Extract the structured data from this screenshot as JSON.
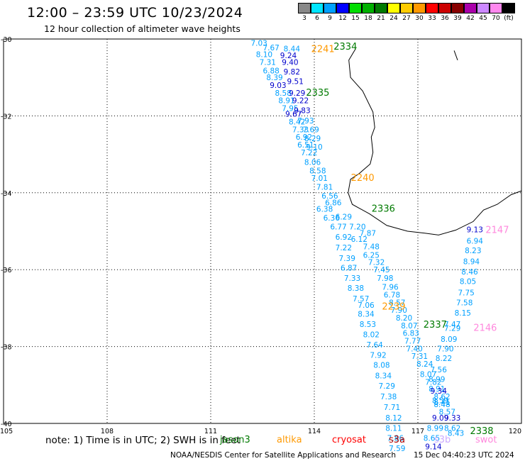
{
  "header": {
    "title": "12:00 – 23:59 UTC 10/23/2024",
    "subtitle": "12 hour collection of altimeter wave heights"
  },
  "colorbar": {
    "unit": "(ft)",
    "swatches": [
      {
        "label": "3",
        "color": "#888888"
      },
      {
        "label": "6",
        "color": "#00e5ff"
      },
      {
        "label": "9",
        "color": "#00a0ff"
      },
      {
        "label": "12",
        "color": "#0000ff"
      },
      {
        "label": "15",
        "color": "#00dd00"
      },
      {
        "label": "18",
        "color": "#00b000"
      },
      {
        "label": "21",
        "color": "#007a00"
      },
      {
        "label": "24",
        "color": "#ffff00"
      },
      {
        "label": "27",
        "color": "#ffcc00"
      },
      {
        "label": "30",
        "color": "#ff9900"
      },
      {
        "label": "33",
        "color": "#ff0000"
      },
      {
        "label": "36",
        "color": "#cc0000"
      },
      {
        "label": "39",
        "color": "#880000"
      },
      {
        "label": "42",
        "color": "#aa00aa"
      },
      {
        "label": "45",
        "color": "#cc88ff"
      },
      {
        "label": "70",
        "color": "#ff88ee"
      },
      {
        "label": "",
        "color": "#000000"
      }
    ]
  },
  "axes": {
    "lat_labels": [
      "-30",
      "-32",
      "-34",
      "-36",
      "-38",
      "-40"
    ],
    "lon_labels": [
      "105",
      "108",
      "111",
      "114",
      "117",
      "120"
    ]
  },
  "map_data": {
    "lat_range": [
      -40,
      -30
    ],
    "lon_range": [
      105,
      120
    ],
    "grid": true,
    "coastline": [
      [
        115.2,
        -30.25
      ],
      [
        115.0,
        -30.55
      ],
      [
        115.05,
        -31.0
      ],
      [
        115.4,
        -31.35
      ],
      [
        115.7,
        -31.9
      ],
      [
        115.75,
        -32.3
      ],
      [
        115.65,
        -32.55
      ],
      [
        115.7,
        -32.95
      ],
      [
        115.62,
        -33.25
      ],
      [
        115.3,
        -33.5
      ],
      [
        115.05,
        -33.65
      ],
      [
        114.98,
        -34.0
      ],
      [
        115.1,
        -34.3
      ],
      [
        115.6,
        -34.55
      ],
      [
        116.1,
        -34.85
      ],
      [
        116.7,
        -35.0
      ],
      [
        117.2,
        -35.05
      ],
      [
        117.6,
        -35.1
      ],
      [
        118.1,
        -34.97
      ],
      [
        118.6,
        -34.75
      ],
      [
        118.9,
        -34.45
      ],
      [
        119.3,
        -34.3
      ],
      [
        119.7,
        -34.05
      ],
      [
        120.0,
        -33.95
      ]
    ],
    "island": [
      [
        118.05,
        -30.3
      ],
      [
        118.15,
        -30.55
      ]
    ],
    "tracks": [
      {
        "label": "2334",
        "label_color": "#007a00",
        "label_pos": [
          114.9,
          -30.18
        ],
        "points": [
          {
            "lon": 112.4,
            "lat": -30.1,
            "v": "7.03",
            "c": "#00a0ff"
          },
          {
            "lon": 112.75,
            "lat": -30.22,
            "v": "7.67",
            "c": "#00a0ff"
          },
          {
            "lon": 113.35,
            "lat": -30.25,
            "v": "8.44",
            "c": "#00a0ff"
          },
          {
            "lon": 112.55,
            "lat": -30.4,
            "v": "8.10",
            "c": "#00a0ff"
          },
          {
            "lon": 113.25,
            "lat": -30.42,
            "v": "9.24",
            "c": "#0000cc"
          },
          {
            "lon": 112.65,
            "lat": -30.6,
            "v": "7.31",
            "c": "#00a0ff"
          },
          {
            "lon": 113.3,
            "lat": -30.6,
            "v": "9.40",
            "c": "#0000cc"
          },
          {
            "lon": 112.75,
            "lat": -30.82,
            "v": "6.88",
            "c": "#00a0ff"
          },
          {
            "lon": 113.35,
            "lat": -30.85,
            "v": "9.82",
            "c": "#0000cc"
          },
          {
            "lon": 112.85,
            "lat": -31.0,
            "v": "8.39",
            "c": "#00a0ff"
          },
          {
            "lon": 112.95,
            "lat": -31.2,
            "v": "9.03",
            "c": "#0000cc"
          },
          {
            "lon": 113.45,
            "lat": -31.1,
            "v": "9.51",
            "c": "#0000cc"
          },
          {
            "lon": 113.1,
            "lat": -31.4,
            "v": "8.58",
            "c": "#00a0ff"
          },
          {
            "lon": 113.5,
            "lat": -31.4,
            "v": "9.29",
            "c": "#0000cc"
          },
          {
            "lon": 113.2,
            "lat": -31.6,
            "v": "8.91",
            "c": "#00a0ff"
          },
          {
            "lon": 113.6,
            "lat": -31.6,
            "v": "9.22",
            "c": "#0000cc"
          },
          {
            "lon": 113.3,
            "lat": -31.8,
            "v": "7.95",
            "c": "#00a0ff"
          },
          {
            "lon": 113.65,
            "lat": -31.85,
            "v": "9.83",
            "c": "#0000cc"
          },
          {
            "lon": 113.4,
            "lat": -31.95,
            "v": "9.67",
            "c": "#0000cc"
          },
          {
            "lon": 113.5,
            "lat": -32.15,
            "v": "8.42",
            "c": "#00a0ff"
          },
          {
            "lon": 113.75,
            "lat": -32.12,
            "v": "7.93",
            "c": "#00a0ff"
          },
          {
            "lon": 113.6,
            "lat": -32.35,
            "v": "7.33",
            "c": "#00a0ff"
          },
          {
            "lon": 113.9,
            "lat": -32.35,
            "v": "7.69",
            "c": "#00a0ff"
          },
          {
            "lon": 113.7,
            "lat": -32.55,
            "v": "6.92",
            "c": "#00a0ff"
          },
          {
            "lon": 113.95,
            "lat": -32.58,
            "v": "8.29",
            "c": "#00a0ff"
          },
          {
            "lon": 113.75,
            "lat": -32.75,
            "v": "6.51",
            "c": "#00a0ff"
          },
          {
            "lon": 114.0,
            "lat": -32.8,
            "v": "9.10",
            "c": "#00a0ff"
          },
          {
            "lon": 113.85,
            "lat": -32.95,
            "v": "7.22",
            "c": "#00a0ff"
          },
          {
            "lon": 113.95,
            "lat": -33.2,
            "v": "8.06",
            "c": "#00a0ff"
          },
          {
            "lon": 114.1,
            "lat": -33.42,
            "v": "8.58",
            "c": "#00a0ff"
          },
          {
            "lon": 114.15,
            "lat": -33.62,
            "v": "7.01",
            "c": "#00a0ff"
          },
          {
            "lon": 114.3,
            "lat": -33.85,
            "v": "7.81",
            "c": "#00a0ff"
          },
          {
            "lon": 114.45,
            "lat": -34.08,
            "v": "6.56",
            "c": "#00a0ff"
          },
          {
            "lon": 114.55,
            "lat": -34.25,
            "v": "6.86",
            "c": "#00a0ff"
          },
          {
            "lon": 114.3,
            "lat": -34.42,
            "v": "6.38",
            "c": "#00a0ff"
          },
          {
            "lon": 114.5,
            "lat": -34.65,
            "v": "6.36",
            "c": "#00a0ff"
          },
          {
            "lon": 114.85,
            "lat": -34.62,
            "v": "6.29",
            "c": "#00a0ff"
          }
        ]
      },
      {
        "label": "2335",
        "label_color": "#007a00",
        "label_pos": [
          114.1,
          -31.38
        ],
        "points": []
      },
      {
        "label": "2241",
        "label_color": "#ff9900",
        "label_pos": [
          114.25,
          -30.25
        ],
        "points": []
      },
      {
        "label": "2240",
        "label_color": "#ff9900",
        "label_pos": [
          115.4,
          -33.6
        ],
        "points": []
      },
      {
        "label": "2336",
        "label_color": "#007a00",
        "label_pos": [
          116.0,
          -34.4
        ],
        "points": [
          {
            "lon": 114.7,
            "lat": -34.88,
            "v": "6.77",
            "c": "#00a0ff"
          },
          {
            "lon": 115.25,
            "lat": -34.88,
            "v": "7.20",
            "c": "#00a0ff"
          },
          {
            "lon": 115.55,
            "lat": -35.05,
            "v": "7.87",
            "c": "#00a0ff"
          },
          {
            "lon": 114.85,
            "lat": -35.15,
            "v": "6.92",
            "c": "#00a0ff"
          },
          {
            "lon": 115.3,
            "lat": -35.2,
            "v": "6.12",
            "c": "#00a0ff"
          },
          {
            "lon": 114.85,
            "lat": -35.42,
            "v": "7.22",
            "c": "#00a0ff"
          },
          {
            "lon": 115.65,
            "lat": -35.4,
            "v": "7.48",
            "c": "#00a0ff"
          },
          {
            "lon": 115.65,
            "lat": -35.62,
            "v": "6.25",
            "c": "#00a0ff"
          },
          {
            "lon": 114.95,
            "lat": -35.7,
            "v": "7.39",
            "c": "#00a0ff"
          },
          {
            "lon": 115.8,
            "lat": -35.8,
            "v": "7.32",
            "c": "#00a0ff"
          },
          {
            "lon": 115.0,
            "lat": -35.95,
            "v": "6.87",
            "c": "#00a0ff"
          },
          {
            "lon": 115.95,
            "lat": -36.0,
            "v": "7.45",
            "c": "#00a0ff"
          },
          {
            "lon": 115.1,
            "lat": -36.22,
            "v": "7.33",
            "c": "#00a0ff"
          },
          {
            "lon": 116.05,
            "lat": -36.22,
            "v": "7.98",
            "c": "#00a0ff"
          },
          {
            "lon": 115.2,
            "lat": -36.48,
            "v": "8.38",
            "c": "#00a0ff"
          },
          {
            "lon": 116.2,
            "lat": -36.45,
            "v": "7.96",
            "c": "#00a0ff"
          },
          {
            "lon": 116.25,
            "lat": -36.65,
            "v": "6.78",
            "c": "#00a0ff"
          },
          {
            "lon": 115.35,
            "lat": -36.75,
            "v": "7.57",
            "c": "#00a0ff"
          },
          {
            "lon": 116.4,
            "lat": -36.85,
            "v": "8.57",
            "c": "#00a0ff"
          },
          {
            "lon": 115.5,
            "lat": -36.92,
            "v": "7.06",
            "c": "#00a0ff"
          },
          {
            "lon": 116.45,
            "lat": -37.05,
            "v": "7.90",
            "c": "#00a0ff"
          },
          {
            "lon": 115.5,
            "lat": -37.15,
            "v": "8.34",
            "c": "#00a0ff"
          },
          {
            "lon": 116.6,
            "lat": -37.25,
            "v": "8.20",
            "c": "#00a0ff"
          },
          {
            "lon": 115.55,
            "lat": -37.42,
            "v": "8.53",
            "c": "#00a0ff"
          },
          {
            "lon": 116.75,
            "lat": -37.45,
            "v": "8.07",
            "c": "#00a0ff"
          },
          {
            "lon": 116.8,
            "lat": -37.65,
            "v": "6.83",
            "c": "#00a0ff"
          },
          {
            "lon": 115.65,
            "lat": -37.68,
            "v": "8.02",
            "c": "#00a0ff"
          },
          {
            "lon": 116.85,
            "lat": -37.85,
            "v": "7.77",
            "c": "#00a0ff"
          },
          {
            "lon": 115.75,
            "lat": -37.95,
            "v": "7.64",
            "c": "#00a0ff"
          },
          {
            "lon": 116.9,
            "lat": -38.05,
            "v": "7.40",
            "c": "#00a0ff"
          },
          {
            "lon": 115.85,
            "lat": -38.22,
            "v": "7.92",
            "c": "#00a0ff"
          },
          {
            "lon": 117.05,
            "lat": -38.25,
            "v": "7.31",
            "c": "#00a0ff"
          },
          {
            "lon": 115.95,
            "lat": -38.48,
            "v": "8.08",
            "c": "#00a0ff"
          },
          {
            "lon": 117.2,
            "lat": -38.45,
            "v": "8.24",
            "c": "#00a0ff"
          },
          {
            "lon": 116.0,
            "lat": -38.75,
            "v": "8.34",
            "c": "#00a0ff"
          },
          {
            "lon": 117.3,
            "lat": -38.72,
            "v": "8.07",
            "c": "#00a0ff"
          },
          {
            "lon": 117.45,
            "lat": -38.92,
            "v": "7.82",
            "c": "#00a0ff"
          },
          {
            "lon": 116.1,
            "lat": -39.02,
            "v": "7.29",
            "c": "#00a0ff"
          },
          {
            "lon": 117.55,
            "lat": -39.1,
            "v": "8.91",
            "c": "#00a0ff"
          },
          {
            "lon": 116.15,
            "lat": -39.3,
            "v": "7.38",
            "c": "#00a0ff"
          },
          {
            "lon": 117.65,
            "lat": -39.4,
            "v": "8.59",
            "c": "#00a0ff"
          },
          {
            "lon": 117.7,
            "lat": -39.5,
            "v": "8.48",
            "c": "#00a0ff"
          },
          {
            "lon": 116.25,
            "lat": -39.58,
            "v": "7.71",
            "c": "#00a0ff"
          },
          {
            "lon": 116.3,
            "lat": -39.85,
            "v": "8.12",
            "c": "#00a0ff"
          },
          {
            "lon": 117.65,
            "lat": -39.85,
            "v": "9.09",
            "c": "#0000cc"
          },
          {
            "lon": 116.3,
            "lat": -40.12,
            "v": "8.11",
            "c": "#00a0ff"
          },
          {
            "lon": 117.5,
            "lat": -40.12,
            "v": "8.99",
            "c": "#00a0ff"
          },
          {
            "lon": 116.35,
            "lat": -40.38,
            "v": "7.86",
            "c": "#00a0ff"
          },
          {
            "lon": 117.4,
            "lat": -40.38,
            "v": "8.65",
            "c": "#00a0ff"
          },
          {
            "lon": 116.4,
            "lat": -40.65,
            "v": "7.59",
            "c": "#00a0ff"
          },
          {
            "lon": 117.45,
            "lat": -40.6,
            "v": "9.14",
            "c": "#0000cc"
          }
        ]
      },
      {
        "label": "2239",
        "label_color": "#ff9900",
        "label_pos": [
          116.3,
          -36.95
        ],
        "points": []
      },
      {
        "label": "2337",
        "label_color": "#007a00",
        "label_pos": [
          117.5,
          -37.42
        ],
        "points": [
          {
            "lon": 118.0,
            "lat": -37.42,
            "v": "7.47",
            "c": "#00a0ff"
          },
          {
            "lon": 118.0,
            "lat": -37.52,
            "v": "7.29",
            "c": "#00a0ff"
          },
          {
            "lon": 117.9,
            "lat": -37.8,
            "v": "8.09",
            "c": "#00a0ff"
          },
          {
            "lon": 117.8,
            "lat": -38.05,
            "v": "7.90",
            "c": "#00a0ff"
          },
          {
            "lon": 117.75,
            "lat": -38.3,
            "v": "8.22",
            "c": "#00a0ff"
          },
          {
            "lon": 117.6,
            "lat": -38.6,
            "v": "7.56",
            "c": "#00a0ff"
          },
          {
            "lon": 117.55,
            "lat": -38.85,
            "v": "8.99",
            "c": "#00a0ff"
          },
          {
            "lon": 117.6,
            "lat": -39.15,
            "v": "9.34",
            "c": "#0000cc"
          },
          {
            "lon": 117.7,
            "lat": -39.3,
            "v": "8.62",
            "c": "#00a0ff"
          },
          {
            "lon": 117.7,
            "lat": -39.45,
            "v": "8.41",
            "c": "#00a0ff"
          },
          {
            "lon": 117.85,
            "lat": -39.7,
            "v": "8.57",
            "c": "#00a0ff"
          },
          {
            "lon": 118.0,
            "lat": -39.85,
            "v": "9.33",
            "c": "#0000cc"
          },
          {
            "lon": 118.0,
            "lat": -40.12,
            "v": "8.62",
            "c": "#00a0ff"
          },
          {
            "lon": 118.1,
            "lat": -40.25,
            "v": "8.43",
            "c": "#00a0ff"
          }
        ]
      },
      {
        "label": "2338",
        "label_color": "#007a00",
        "label_pos": [
          118.85,
          -40.18
        ],
        "points": []
      },
      {
        "label": "2147",
        "label_color": "#ff88dd",
        "label_pos": [
          119.3,
          -34.95
        ],
        "points": [
          {
            "lon": 118.65,
            "lat": -34.95,
            "v": "9.13",
            "c": "#0000cc"
          },
          {
            "lon": 118.65,
            "lat": -35.25,
            "v": "6.94",
            "c": "#00a0ff"
          },
          {
            "lon": 118.6,
            "lat": -35.5,
            "v": "8.23",
            "c": "#00a0ff"
          },
          {
            "lon": 118.55,
            "lat": -35.78,
            "v": "8.94",
            "c": "#00a0ff"
          },
          {
            "lon": 118.5,
            "lat": -36.05,
            "v": "8.46",
            "c": "#00a0ff"
          },
          {
            "lon": 118.45,
            "lat": -36.3,
            "v": "8.05",
            "c": "#00a0ff"
          },
          {
            "lon": 118.4,
            "lat": -36.6,
            "v": "7.75",
            "c": "#00a0ff"
          },
          {
            "lon": 118.35,
            "lat": -36.85,
            "v": "7.58",
            "c": "#00a0ff"
          },
          {
            "lon": 118.3,
            "lat": -37.12,
            "v": "8.15",
            "c": "#00a0ff"
          }
        ]
      },
      {
        "label": "2146",
        "label_color": "#ff88dd",
        "label_pos": [
          118.95,
          -37.5
        ],
        "points": []
      }
    ]
  },
  "legend": {
    "note": "note:  1) Time is in UTC;  2) SWH is in feet",
    "satellites": [
      {
        "name": "jason3",
        "color": "#007a00",
        "left": 310
      },
      {
        "name": "altika",
        "color": "#ff9900",
        "left": 390
      },
      {
        "name": "cryosat",
        "color": "#ff0000",
        "left": 468
      },
      {
        "name": "s3a",
        "color": "#aa0000",
        "left": 548
      },
      {
        "name": "s3b",
        "color": "#ccaaff",
        "left": 612
      },
      {
        "name": "swot",
        "color": "#ff88dd",
        "left": 670
      }
    ]
  },
  "footer": {
    "credit": "NOAA/NESDIS Center for Satellite Applications and Research",
    "timestamp": "15 Dec 04:40:23 UTC 2024"
  }
}
